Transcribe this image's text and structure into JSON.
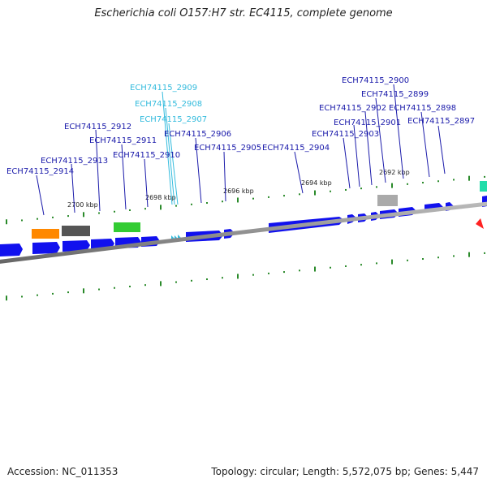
{
  "title": "Escherichia coli O157:H7 str. EC4115, complete genome",
  "accession": "Accession: NC_011353",
  "genome_stats": "Topology: circular; Length: 5,572,075 bp; Genes: 5,447",
  "colors": {
    "label_default": "#1a1aaa",
    "label_highlight": "#33bbdd",
    "cds": "#1111ee",
    "backbone": "#888888",
    "tick": "#2a8a2a"
  },
  "kbp_labels": [
    "2700 kbp",
    "2698 kbp",
    "2696 kbp",
    "2694 kbp",
    "2692 kbp"
  ],
  "gene_labels": [
    {
      "name": "ECH74115_2914",
      "highlight": false
    },
    {
      "name": "ECH74115_2913",
      "highlight": false
    },
    {
      "name": "ECH74115_2912",
      "highlight": false
    },
    {
      "name": "ECH74115_2911",
      "highlight": false
    },
    {
      "name": "ECH74115_2910",
      "highlight": false
    },
    {
      "name": "ECH74115_2909",
      "highlight": true
    },
    {
      "name": "ECH74115_2908",
      "highlight": true
    },
    {
      "name": "ECH74115_2907",
      "highlight": true
    },
    {
      "name": "ECH74115_2906",
      "highlight": false
    },
    {
      "name": "ECH74115_2905",
      "highlight": false
    },
    {
      "name": "ECH74115_2904",
      "highlight": false
    },
    {
      "name": "ECH74115_2903",
      "highlight": false
    },
    {
      "name": "ECH74115_2902",
      "highlight": false
    },
    {
      "name": "ECH74115_2901",
      "highlight": false
    },
    {
      "name": "ECH74115_2900",
      "highlight": false
    },
    {
      "name": "ECH74115_2899",
      "highlight": false
    },
    {
      "name": "ECH74115_2898",
      "highlight": false
    },
    {
      "name": "ECH74115_2897",
      "highlight": false
    }
  ],
  "features": [
    {
      "type": "gene",
      "color": "#ff8800"
    },
    {
      "type": "gene",
      "color": "#555555"
    },
    {
      "type": "gene",
      "color": "#33cc33"
    },
    {
      "type": "gene",
      "color": "#aaaaaa"
    },
    {
      "type": "gene",
      "color": "#22ddaa"
    },
    {
      "type": "gene",
      "color": "#ff2222"
    }
  ]
}
